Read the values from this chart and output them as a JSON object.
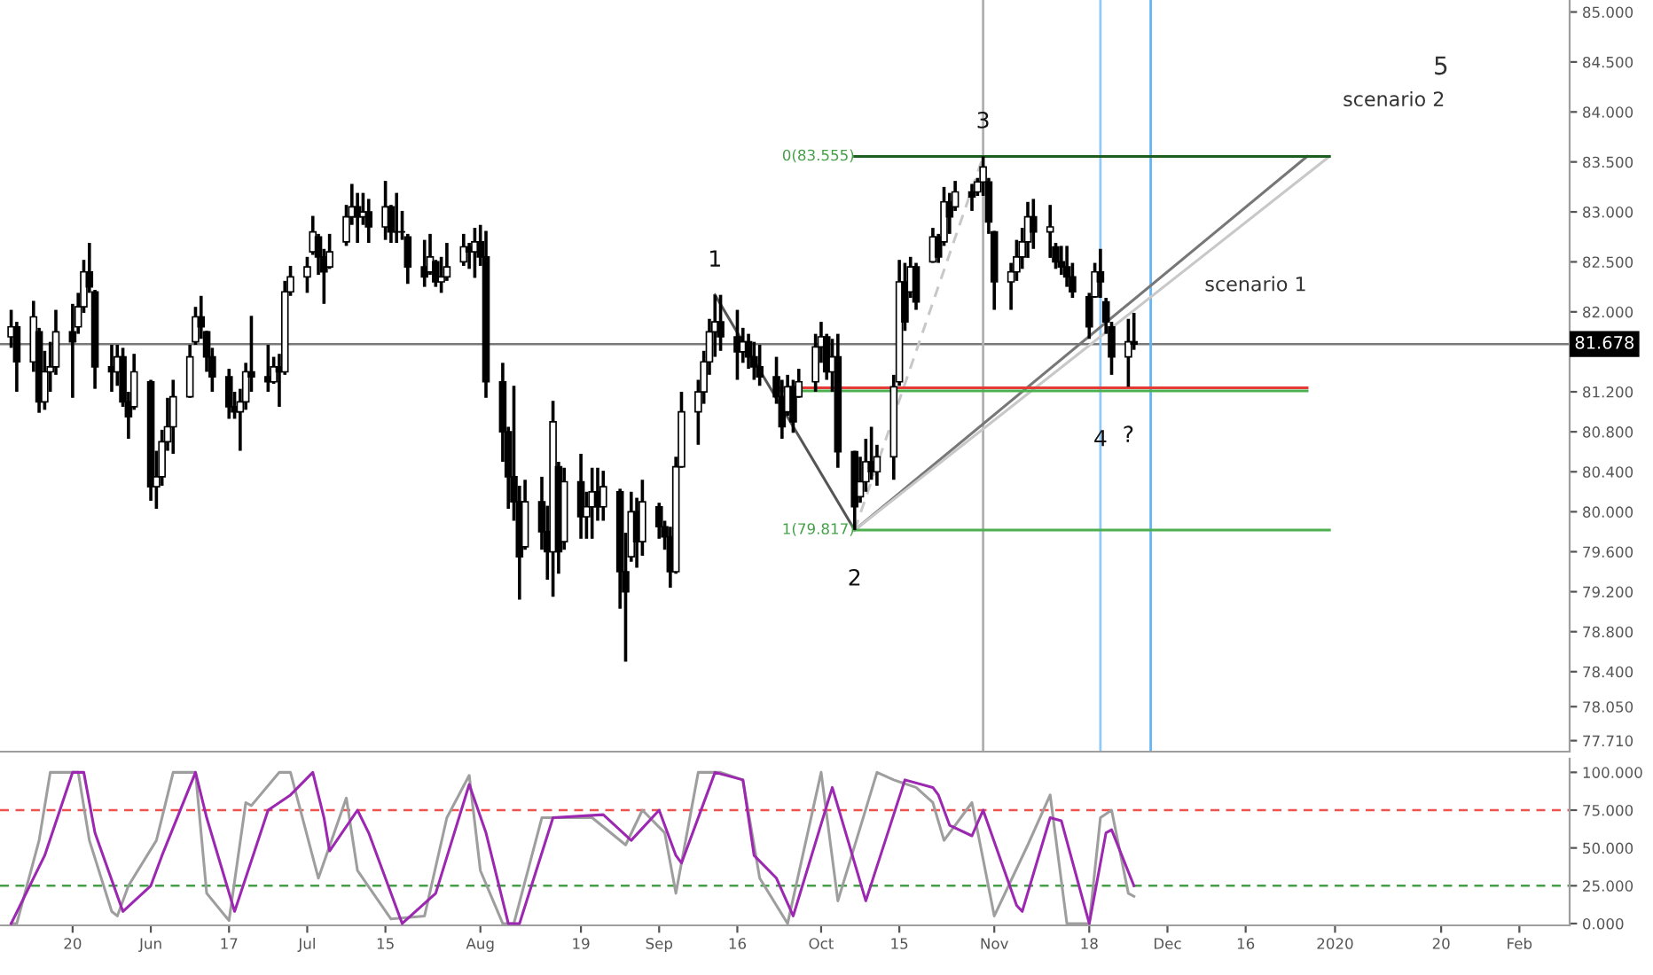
{
  "chart_data": [
    {
      "type": "candlestick",
      "color": "#000000",
      "x": [
        "2019-05-09",
        "2019-05-10",
        "2019-05-13",
        "2019-05-14",
        "2019-05-15",
        "2019-05-16",
        "2019-05-17",
        "2019-05-20",
        "2019-05-21",
        "2019-05-22",
        "2019-05-23",
        "2019-05-24",
        "2019-05-27",
        "2019-05-28",
        "2019-05-29",
        "2019-05-30",
        "2019-05-31",
        "2019-06-03",
        "2019-06-04",
        "2019-06-05",
        "2019-06-06",
        "2019-06-07",
        "2019-06-10",
        "2019-06-11",
        "2019-06-12",
        "2019-06-13",
        "2019-06-14",
        "2019-06-17",
        "2019-06-18",
        "2019-06-19",
        "2019-06-20",
        "2019-06-21",
        "2019-06-24",
        "2019-06-25",
        "2019-06-26",
        "2019-06-27",
        "2019-06-28",
        "2019-07-01",
        "2019-07-02",
        "2019-07-03",
        "2019-07-04",
        "2019-07-05",
        "2019-07-08",
        "2019-07-09",
        "2019-07-10",
        "2019-07-11",
        "2019-07-12",
        "2019-07-15",
        "2019-07-16",
        "2019-07-17",
        "2019-07-18",
        "2019-07-19",
        "2019-07-22",
        "2019-07-23",
        "2019-07-24",
        "2019-07-25",
        "2019-07-26",
        "2019-07-29",
        "2019-07-30",
        "2019-07-31",
        "2019-08-01",
        "2019-08-02",
        "2019-08-05",
        "2019-08-06",
        "2019-08-07",
        "2019-08-08",
        "2019-08-09",
        "2019-08-12",
        "2019-08-13",
        "2019-08-14",
        "2019-08-15",
        "2019-08-16",
        "2019-08-19",
        "2019-08-20",
        "2019-08-21",
        "2019-08-22",
        "2019-08-23",
        "2019-08-26",
        "2019-08-27",
        "2019-08-28",
        "2019-08-29",
        "2019-08-30",
        "2019-09-02",
        "2019-09-03",
        "2019-09-04",
        "2019-09-05",
        "2019-09-06",
        "2019-09-09",
        "2019-09-10",
        "2019-09-11",
        "2019-09-12",
        "2019-09-13",
        "2019-09-16",
        "2019-09-17",
        "2019-09-18",
        "2019-09-19",
        "2019-09-20",
        "2019-09-23",
        "2019-09-24",
        "2019-09-25",
        "2019-09-26",
        "2019-09-27",
        "2019-09-30",
        "2019-10-01",
        "2019-10-02",
        "2019-10-03",
        "2019-10-04",
        "2019-10-07",
        "2019-10-08",
        "2019-10-09",
        "2019-10-10",
        "2019-10-11",
        "2019-10-14",
        "2019-10-15",
        "2019-10-16",
        "2019-10-17",
        "2019-10-18",
        "2019-10-21",
        "2019-10-22",
        "2019-10-23",
        "2019-10-24",
        "2019-10-25",
        "2019-10-28",
        "2019-10-29",
        "2019-10-30",
        "2019-10-31",
        "2019-11-01",
        "2019-11-04",
        "2019-11-05",
        "2019-11-06",
        "2019-11-07",
        "2019-11-08",
        "2019-11-11",
        "2019-11-12",
        "2019-11-13",
        "2019-11-14",
        "2019-11-15",
        "2019-11-18",
        "2019-11-19",
        "2019-11-20",
        "2019-11-21",
        "2019-11-22",
        "2019-11-25",
        "2019-11-26"
      ],
      "ohlc": [
        [
          81.75,
          82.02,
          81.64,
          81.85
        ],
        [
          81.85,
          81.9,
          81.2,
          81.5
        ],
        [
          81.5,
          82.11,
          81.4,
          81.95
        ],
        [
          81.8,
          81.84,
          80.99,
          81.1
        ],
        [
          81.1,
          81.61,
          81.02,
          81.4
        ],
        [
          81.4,
          81.7,
          81.2,
          81.45
        ],
        [
          81.45,
          82.02,
          81.37,
          81.8
        ],
        [
          81.8,
          82.08,
          81.14,
          81.7
        ],
        [
          81.85,
          82.19,
          81.78,
          82.05
        ],
        [
          82.05,
          82.52,
          81.99,
          82.4
        ],
        [
          82.4,
          82.69,
          82.19,
          82.25
        ],
        [
          82.2,
          82.22,
          81.23,
          81.45
        ],
        [
          81.45,
          81.67,
          81.2,
          81.4
        ],
        [
          81.4,
          81.67,
          81.26,
          81.55
        ],
        [
          81.55,
          81.64,
          81.05,
          81.1
        ],
        [
          81.1,
          81.2,
          80.73,
          80.95
        ],
        [
          81.05,
          81.58,
          81.02,
          81.4
        ],
        [
          81.3,
          81.32,
          80.11,
          80.25
        ],
        [
          80.25,
          80.61,
          80.03,
          80.35
        ],
        [
          80.35,
          80.82,
          80.26,
          80.7
        ],
        [
          80.7,
          81.14,
          80.61,
          80.85
        ],
        [
          80.85,
          81.32,
          80.58,
          81.15
        ],
        [
          81.15,
          81.67,
          81.14,
          81.55
        ],
        [
          81.7,
          82.05,
          81.67,
          81.95
        ],
        [
          81.95,
          82.16,
          81.73,
          81.85
        ],
        [
          81.8,
          81.81,
          81.4,
          81.55
        ],
        [
          81.55,
          81.64,
          81.2,
          81.35
        ],
        [
          81.35,
          81.43,
          80.93,
          81.05
        ],
        [
          81.05,
          81.2,
          80.93,
          81.0
        ],
        [
          81.0,
          81.23,
          80.61,
          81.1
        ],
        [
          81.1,
          81.49,
          81.02,
          81.4
        ],
        [
          81.4,
          81.96,
          81.2,
          81.35
        ],
        [
          81.35,
          81.67,
          81.2,
          81.3
        ],
        [
          81.3,
          81.55,
          81.28,
          81.45
        ],
        [
          81.45,
          81.58,
          81.05,
          81.4
        ],
        [
          81.4,
          82.31,
          81.37,
          82.2
        ],
        [
          82.2,
          82.46,
          82.16,
          82.35
        ],
        [
          82.35,
          82.55,
          82.19,
          82.45
        ],
        [
          82.6,
          82.96,
          82.57,
          82.8
        ],
        [
          82.75,
          82.78,
          82.37,
          82.55
        ],
        [
          82.55,
          82.63,
          82.08,
          82.4
        ],
        [
          82.45,
          82.78,
          82.43,
          82.6
        ],
        [
          82.7,
          83.07,
          82.66,
          82.95
        ],
        [
          82.95,
          83.28,
          82.87,
          83.05
        ],
        [
          83.05,
          83.19,
          82.69,
          82.95
        ],
        [
          82.95,
          83.19,
          82.87,
          83.0
        ],
        [
          83.0,
          83.13,
          82.69,
          82.85
        ],
        [
          82.85,
          83.31,
          82.72,
          83.05
        ],
        [
          83.05,
          83.07,
          82.69,
          82.8
        ],
        [
          82.8,
          83.19,
          82.69,
          82.8
        ],
        [
          82.8,
          83.01,
          82.72,
          82.8
        ],
        [
          82.75,
          82.78,
          82.28,
          82.45
        ],
        [
          82.45,
          82.72,
          82.25,
          82.35
        ],
        [
          82.4,
          82.78,
          82.37,
          82.55
        ],
        [
          82.5,
          82.52,
          82.25,
          82.3
        ],
        [
          82.3,
          82.55,
          82.19,
          82.35
        ],
        [
          82.35,
          82.69,
          82.31,
          82.45
        ],
        [
          82.5,
          82.78,
          82.46,
          82.65
        ],
        [
          82.65,
          82.69,
          82.43,
          82.6
        ],
        [
          82.6,
          82.84,
          82.34,
          82.7
        ],
        [
          82.7,
          82.87,
          82.46,
          82.55
        ],
        [
          82.55,
          82.81,
          81.14,
          81.3
        ],
        [
          81.3,
          81.49,
          80.5,
          80.8
        ],
        [
          80.8,
          80.85,
          80.03,
          80.35
        ],
        [
          80.35,
          81.26,
          79.91,
          80.1
        ],
        [
          80.1,
          80.26,
          79.12,
          79.55
        ],
        [
          79.65,
          80.32,
          79.62,
          80.1
        ],
        [
          80.1,
          80.35,
          79.62,
          79.8
        ],
        [
          79.8,
          80.06,
          79.32,
          79.6
        ],
        [
          79.6,
          81.11,
          79.15,
          80.9
        ],
        [
          80.45,
          80.5,
          79.38,
          79.6
        ],
        [
          79.7,
          80.44,
          79.62,
          80.3
        ],
        [
          80.3,
          80.58,
          79.73,
          79.95
        ],
        [
          79.95,
          80.2,
          79.73,
          80.05
        ],
        [
          80.05,
          80.44,
          79.73,
          80.2
        ],
        [
          80.2,
          80.44,
          79.91,
          80.05
        ],
        [
          80.05,
          80.41,
          79.91,
          80.25
        ],
        [
          80.2,
          80.23,
          79.03,
          79.4
        ],
        [
          79.4,
          79.79,
          78.5,
          79.2
        ],
        [
          79.55,
          80.2,
          79.5,
          80.0
        ],
        [
          80.0,
          80.14,
          79.44,
          79.7
        ],
        [
          79.7,
          80.32,
          79.56,
          80.1
        ],
        [
          80.05,
          80.09,
          79.73,
          79.85
        ],
        [
          79.85,
          79.91,
          79.62,
          79.75
        ],
        [
          79.75,
          79.85,
          79.24,
          79.4
        ],
        [
          79.4,
          80.55,
          79.38,
          80.45
        ],
        [
          80.45,
          81.2,
          80.44,
          81.0
        ],
        [
          81.0,
          81.32,
          80.67,
          81.2
        ],
        [
          81.2,
          81.61,
          81.08,
          81.5
        ],
        [
          81.5,
          81.93,
          81.37,
          81.8
        ],
        [
          81.8,
          82.17,
          81.55,
          81.9
        ],
        [
          81.9,
          82.17,
          81.61,
          81.75
        ],
        [
          81.75,
          82.02,
          81.32,
          81.6
        ],
        [
          81.6,
          81.84,
          81.49,
          81.7
        ],
        [
          81.7,
          81.78,
          81.43,
          81.55
        ],
        [
          81.55,
          81.7,
          81.32,
          81.45
        ],
        [
          81.45,
          81.67,
          81.26,
          81.35
        ],
        [
          81.35,
          81.55,
          81.08,
          81.15
        ],
        [
          81.15,
          81.32,
          80.73,
          80.85
        ],
        [
          81.0,
          81.37,
          80.96,
          81.25
        ],
        [
          81.25,
          81.32,
          80.79,
          80.9
        ],
        [
          81.15,
          81.43,
          81.14,
          81.3
        ],
        [
          81.3,
          81.78,
          81.2,
          81.65
        ],
        [
          81.65,
          81.9,
          81.49,
          81.75
        ],
        [
          81.75,
          81.78,
          81.32,
          81.4
        ],
        [
          81.4,
          81.73,
          81.2,
          81.55
        ],
        [
          81.55,
          81.78,
          80.44,
          80.6
        ],
        [
          80.6,
          80.61,
          79.817,
          80.05
        ],
        [
          80.15,
          80.55,
          80.09,
          80.3
        ],
        [
          80.3,
          80.73,
          80.2,
          80.5
        ],
        [
          80.5,
          80.85,
          80.32,
          80.4
        ],
        [
          80.4,
          80.67,
          80.26,
          80.55
        ],
        [
          80.55,
          81.37,
          80.32,
          81.25
        ],
        [
          81.3,
          82.52,
          81.26,
          82.3
        ],
        [
          82.3,
          82.49,
          81.81,
          81.9
        ],
        [
          82.2,
          82.55,
          82.14,
          82.45
        ],
        [
          82.45,
          82.49,
          82.02,
          82.1
        ],
        [
          82.5,
          82.84,
          82.49,
          82.75
        ],
        [
          82.75,
          82.78,
          82.49,
          82.55
        ],
        [
          82.7,
          83.25,
          82.66,
          83.1
        ],
        [
          83.1,
          83.19,
          82.78,
          82.95
        ],
        [
          83.05,
          83.31,
          83.01,
          83.2
        ],
        [
          83.2,
          83.28,
          83.01,
          83.15
        ],
        [
          83.2,
          83.34,
          83.16,
          83.3
        ],
        [
          83.3,
          83.555,
          83.16,
          83.45
        ],
        [
          83.3,
          83.34,
          82.78,
          82.9
        ],
        [
          82.8,
          82.81,
          82.02,
          82.3
        ],
        [
          82.3,
          82.49,
          82.02,
          82.4
        ],
        [
          82.4,
          82.72,
          82.31,
          82.55
        ],
        [
          82.55,
          82.84,
          82.43,
          82.7
        ],
        [
          82.7,
          83.1,
          82.54,
          82.95
        ],
        [
          82.95,
          83.13,
          82.63,
          82.8
        ],
        [
          82.8,
          83.07,
          82.54,
          82.85
        ],
        [
          82.65,
          82.69,
          82.43,
          82.5
        ],
        [
          82.5,
          82.66,
          82.37,
          82.45
        ],
        [
          82.45,
          82.66,
          82.25,
          82.35
        ],
        [
          82.35,
          82.49,
          82.14,
          82.2
        ],
        [
          82.15,
          82.19,
          81.73,
          81.85
        ],
        [
          82.15,
          82.49,
          82.14,
          82.4
        ],
        [
          82.4,
          82.63,
          82.14,
          82.3
        ],
        [
          82.1,
          82.14,
          81.78,
          81.9
        ],
        [
          81.85,
          81.9,
          81.37,
          81.55
        ],
        [
          81.55,
          81.93,
          81.25,
          81.7
        ],
        [
          81.7,
          81.99,
          81.62,
          81.678
        ]
      ],
      "series": [
        {
          "type": "line",
          "x": [
            "2019-09-12",
            "2019-10-07"
          ],
          "values": [
            82.17,
            79.817
          ],
          "color": "#555555"
        },
        {
          "type": "line",
          "x": [
            "2019-10-07",
            "2019-12-27"
          ],
          "values": [
            79.817,
            83.555
          ],
          "color": "#777777"
        },
        {
          "type": "line",
          "x": [
            "2019-10-07",
            "2019-12-31"
          ],
          "values": [
            79.817,
            83.555
          ],
          "color": "#c8c8c8"
        },
        {
          "type": "line",
          "x": [
            "2019-10-07",
            "2019-10-30"
          ],
          "values": [
            79.817,
            83.555
          ],
          "color": "#c8c8c8",
          "line_style": "dashed"
        },
        {
          "type": "line",
          "x": [
            "2019-10-07",
            "2019-12-31"
          ],
          "values": [
            83.555,
            83.555
          ],
          "color": "#1b5e20"
        },
        {
          "type": "line",
          "x": [
            "2019-09-23",
            "2019-12-27"
          ],
          "values": [
            81.24,
            81.24
          ],
          "color": "#e53935"
        },
        {
          "type": "line",
          "x": [
            "2019-09-23",
            "2019-12-27"
          ],
          "values": [
            81.21,
            81.21
          ],
          "color": "#4caf50"
        },
        {
          "type": "line",
          "x": [
            "2019-10-07",
            "2019-12-31"
          ],
          "values": [
            79.817,
            79.817
          ],
          "color": "#4caf50"
        }
      ],
      "xlim": [
        "2019-05-07",
        "2020-02-12"
      ],
      "tick_labels": "y",
      "ylim": [
        77.6,
        85.12
      ],
      "yticks": [
        {
          "value": 85,
          "label": "85.000"
        },
        {
          "value": 84.5,
          "label": "84.500"
        },
        {
          "value": 84,
          "label": "84.000"
        },
        {
          "value": 83.5,
          "label": "83.500"
        },
        {
          "value": 83,
          "label": "83.000"
        },
        {
          "value": 82.5,
          "label": "82.500"
        },
        {
          "value": 82,
          "label": "82.000"
        },
        {
          "value": 81.2,
          "label": "81.200"
        },
        {
          "value": 80.8,
          "label": "80.800"
        },
        {
          "value": 80.4,
          "label": "80.400"
        },
        {
          "value": 80,
          "label": "80.000"
        },
        {
          "value": 79.6,
          "label": "79.600"
        },
        {
          "value": 79.2,
          "label": "79.200"
        },
        {
          "value": 78.8,
          "label": "78.800"
        },
        {
          "value": 78.4,
          "label": "78.400"
        },
        {
          "value": 78.05,
          "label": "78.050"
        },
        {
          "value": 77.71,
          "label": "77.710"
        }
      ],
      "ref_lines": [
        {
          "axis": "y",
          "value": 81.678,
          "label": "81.678",
          "color": "#787878"
        },
        {
          "axis": "x",
          "value": "2019-10-30",
          "color": "#b0b0b0"
        },
        {
          "axis": "x",
          "value": "2019-11-20",
          "color": "#90caf9"
        },
        {
          "axis": "x",
          "value": "2019-11-29",
          "color": "#64b5f6"
        }
      ],
      "annotations": [
        {
          "text": "0(83.555)",
          "x": "2019-10-07",
          "y": 83.555
        },
        {
          "text": "1(79.817)",
          "x": "2019-10-07",
          "y": 79.817
        },
        {
          "text": "1",
          "x": "2019-09-12",
          "y": 82.17
        },
        {
          "text": "2",
          "x": "2019-10-07",
          "y": 79.817
        },
        {
          "text": "3",
          "x": "2019-10-30",
          "y": 83.555
        },
        {
          "text": "4",
          "x": "2019-11-20",
          "y": 81.21
        },
        {
          "text": "?",
          "x": "2019-11-25",
          "y": 81.25
        },
        "scenario 1",
        "scenario 2",
        "5"
      ]
    },
    {
      "type": "line",
      "series": [
        {
          "x": [
            "2019-05-09",
            "2019-05-10",
            "2019-05-14",
            "2019-05-16",
            "2019-05-21",
            "2019-05-23",
            "2019-05-27",
            "2019-05-28",
            "2019-05-30",
            "2019-06-04",
            "2019-06-07",
            "2019-06-11",
            "2019-06-13",
            "2019-06-17",
            "2019-06-20",
            "2019-06-21",
            "2019-06-26",
            "2019-06-28",
            "2019-07-03",
            "2019-07-08",
            "2019-07-10",
            "2019-07-16",
            "2019-07-22",
            "2019-07-26",
            "2019-07-30",
            "2019-08-01",
            "2019-08-05",
            "2019-08-07",
            "2019-08-12",
            "2019-08-14",
            "2019-08-21",
            "2019-08-27",
            "2019-08-30",
            "2019-09-03",
            "2019-09-05",
            "2019-09-09",
            "2019-09-13",
            "2019-09-17",
            "2019-09-20",
            "2019-09-25",
            "2019-10-01",
            "2019-10-04",
            "2019-10-11",
            "2019-10-14",
            "2019-10-18",
            "2019-10-21",
            "2019-10-23",
            "2019-10-28",
            "2019-11-01",
            "2019-11-07",
            "2019-11-11",
            "2019-11-14",
            "2019-11-18",
            "2019-11-20",
            "2019-11-22",
            "2019-11-25",
            "2019-11-26"
          ],
          "values": [
            0,
            0,
            55,
            100,
            100,
            55,
            8,
            5,
            25,
            55,
            100,
            100,
            20,
            2,
            80,
            78,
            100,
            100,
            30,
            83,
            35,
            3,
            5,
            70,
            98,
            35,
            0,
            0,
            70,
            70,
            70,
            52,
            75,
            60,
            20,
            100,
            100,
            95,
            30,
            0,
            100,
            15,
            100,
            95,
            90,
            80,
            55,
            80,
            5,
            52,
            85,
            0,
            0,
            70,
            75,
            20,
            18
          ],
          "color": "#9e9e9e"
        },
        {
          "x": [
            "2019-05-09",
            "2019-05-15",
            "2019-05-20",
            "2019-05-22",
            "2019-05-24",
            "2019-05-29",
            "2019-06-03",
            "2019-06-05",
            "2019-06-11",
            "2019-06-13",
            "2019-06-18",
            "2019-06-24",
            "2019-06-28",
            "2019-07-02",
            "2019-07-04",
            "2019-07-05",
            "2019-07-10",
            "2019-07-12",
            "2019-07-18",
            "2019-07-24",
            "2019-07-30",
            "2019-08-02",
            "2019-08-06",
            "2019-08-08",
            "2019-08-14",
            "2019-08-23",
            "2019-08-28",
            "2019-09-02",
            "2019-09-05",
            "2019-09-06",
            "2019-09-12",
            "2019-09-17",
            "2019-09-19",
            "2019-09-23",
            "2019-09-26",
            "2019-10-03",
            "2019-10-09",
            "2019-10-16",
            "2019-10-21",
            "2019-10-22",
            "2019-10-24",
            "2019-10-28",
            "2019-10-30",
            "2019-11-05",
            "2019-11-06",
            "2019-11-11",
            "2019-11-13",
            "2019-11-18",
            "2019-11-21",
            "2019-11-22",
            "2019-11-26"
          ],
          "values": [
            0,
            45,
            100,
            100,
            60,
            8,
            25,
            45,
            100,
            70,
            8,
            75,
            85,
            100,
            70,
            48,
            75,
            60,
            0,
            20,
            92,
            60,
            0,
            0,
            70,
            72,
            55,
            75,
            45,
            40,
            100,
            95,
            45,
            30,
            5,
            90,
            15,
            95,
            90,
            85,
            65,
            58,
            75,
            12,
            8,
            70,
            68,
            0,
            60,
            62,
            25
          ],
          "color": "#9c27b0"
        }
      ],
      "xlim": [
        "2019-05-07",
        "2020-02-12"
      ],
      "xticks": [
        {
          "value": "2019-05-20",
          "label": "20"
        },
        {
          "value": "2019-06-03",
          "label": "Jun"
        },
        {
          "value": "2019-06-17",
          "label": "17"
        },
        {
          "value": "2019-07-01",
          "label": "Jul"
        },
        {
          "value": "2019-07-15",
          "label": "15"
        },
        {
          "value": "2019-08-01",
          "label": "Aug"
        },
        {
          "value": "2019-08-19",
          "label": "19"
        },
        {
          "value": "2019-09-02",
          "label": "Sep"
        },
        {
          "value": "2019-09-16",
          "label": "16"
        },
        {
          "value": "2019-10-01",
          "label": "Oct"
        },
        {
          "value": "2019-10-15",
          "label": "15"
        },
        {
          "value": "2019-11-01",
          "label": "Nov"
        },
        {
          "value": "2019-11-18",
          "label": "18"
        },
        {
          "value": "2019-12-02",
          "label": "Dec"
        },
        {
          "value": "2019-12-16",
          "label": "16"
        },
        {
          "value": "2020-01-01",
          "label": "2020"
        },
        {
          "value": "2020-01-20",
          "label": "20"
        },
        {
          "value": "2020-02-03",
          "label": "Feb"
        }
      ],
      "ylim": [
        -1.2,
        109
      ],
      "yticks": [
        {
          "value": 100,
          "label": "100.000"
        },
        {
          "value": 75,
          "label": "75.000"
        },
        {
          "value": 50,
          "label": "50.000"
        },
        {
          "value": 25,
          "label": "25.000"
        },
        {
          "value": 0,
          "label": "0.000"
        }
      ],
      "ref_lines": [
        {
          "axis": "y",
          "value": 75,
          "color": "#ef5350",
          "line_style": "dashed"
        },
        {
          "axis": "y",
          "value": 25,
          "color": "#43a047",
          "line_style": "dashed"
        }
      ]
    }
  ]
}
